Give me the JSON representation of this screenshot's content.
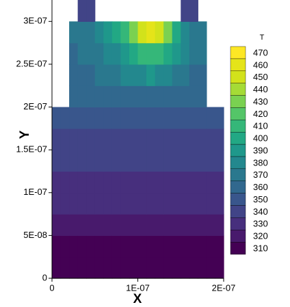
{
  "chart_data": {
    "type": "contour",
    "x_label": "X",
    "y_label": "Y",
    "xlim": [
      0,
      2e-07
    ],
    "ylim": [
      0,
      3.25e-07
    ],
    "xticks": [
      0,
      {
        "value": 1e-07,
        "label": "1E-07"
      },
      {
        "value": 2e-07,
        "label": "2E-07"
      }
    ],
    "yticks": [
      0,
      {
        "value": 5e-08,
        "label": "5E-08"
      },
      {
        "value": 1e-07,
        "label": "1E-07"
      },
      {
        "value": 1.5e-07,
        "label": "1.5E-07"
      },
      {
        "value": 2e-07,
        "label": "2E-07"
      },
      {
        "value": 2.5e-07,
        "label": "2.5E-07"
      },
      {
        "value": 3e-07,
        "label": "3E-07"
      }
    ],
    "x": [
      5e-09,
      1.5e-08,
      2.5e-08,
      3.5e-08,
      4.5e-08,
      5.5e-08,
      6.5e-08,
      7.5e-08,
      8.5e-08,
      9.5e-08,
      1.05e-07,
      1.15e-07,
      1.25e-07,
      1.35e-07,
      1.45e-07,
      1.55e-07,
      1.65e-07,
      1.75e-07,
      1.85e-07,
      1.95e-07
    ],
    "y": [
      1.25e-08,
      3.75e-08,
      6.25e-08,
      8.75e-08,
      1.125e-07,
      1.375e-07,
      1.625e-07,
      1.875e-07,
      2.125e-07,
      2.375e-07,
      2.625e-07,
      2.875e-07,
      3.125e-07
    ],
    "z": [
      [
        310,
        310,
        310,
        310,
        310,
        310,
        310,
        310,
        310,
        310,
        310,
        310,
        310,
        310,
        310,
        310,
        310,
        310,
        310,
        310
      ],
      [
        317,
        317,
        317,
        317,
        317,
        317,
        317,
        317,
        317,
        317,
        317,
        317,
        317,
        317,
        317,
        317,
        317,
        317,
        317,
        317
      ],
      [
        324,
        324,
        324,
        324,
        324,
        324,
        324,
        324,
        324,
        324,
        324,
        324,
        324,
        324,
        324,
        324,
        324,
        324,
        324,
        324
      ],
      [
        330,
        330,
        330,
        330,
        330,
        330,
        330,
        330,
        330,
        330,
        330,
        330,
        330,
        330,
        330,
        330,
        330,
        330,
        330,
        330
      ],
      [
        336,
        336,
        336,
        336,
        336,
        336,
        336,
        336,
        336,
        336,
        336,
        336,
        336,
        336,
        336,
        336,
        336,
        336,
        336,
        336
      ],
      [
        342,
        342,
        342,
        342,
        342,
        342,
        342,
        342,
        342,
        342,
        342,
        342,
        342,
        342,
        342,
        342,
        342,
        342,
        342,
        342
      ],
      [
        348,
        348,
        348,
        348,
        348,
        348,
        348,
        348,
        348,
        348,
        348,
        348,
        348,
        348,
        348,
        348,
        348,
        348,
        348,
        348
      ],
      [
        352,
        353,
        354,
        355,
        356,
        357,
        358,
        358,
        359,
        359,
        359,
        359,
        359,
        358,
        358,
        357,
        356,
        355,
        354,
        353
      ],
      [
        null,
        null,
        362,
        363,
        364,
        365,
        366,
        367,
        368,
        368,
        368,
        368,
        367,
        366,
        365,
        364,
        363,
        362,
        null,
        null
      ],
      [
        null,
        null,
        365,
        367,
        369,
        372,
        375,
        378,
        382,
        386,
        389,
        390,
        388,
        384,
        379,
        374,
        369,
        366,
        null,
        null
      ],
      [
        null,
        null,
        369,
        371,
        374,
        378,
        383,
        389,
        396,
        404,
        412,
        416,
        412,
        403,
        392,
        382,
        374,
        370,
        null,
        null
      ],
      [
        null,
        null,
        372,
        375,
        379,
        385,
        392,
        402,
        415,
        432,
        452,
        462,
        455,
        432,
        405,
        388,
        378,
        372,
        null,
        null
      ],
      [
        null,
        null,
        null,
        345,
        345,
        null,
        null,
        null,
        null,
        null,
        null,
        null,
        null,
        null,
        null,
        345,
        345,
        null,
        null,
        null
      ]
    ],
    "colorbar": {
      "title": "T",
      "levels": [
        310,
        320,
        330,
        340,
        350,
        360,
        370,
        380,
        390,
        400,
        410,
        420,
        430,
        440,
        450,
        460,
        470
      ],
      "colors": [
        "#440154",
        "#481a6c",
        "#472f7d",
        "#414487",
        "#39568c",
        "#31688e",
        "#2a788e",
        "#23888e",
        "#1f988b",
        "#22a884",
        "#35b779",
        "#54c568",
        "#7ad151",
        "#a5db36",
        "#d2e21b",
        "#e5e419",
        "#fde725"
      ]
    }
  }
}
